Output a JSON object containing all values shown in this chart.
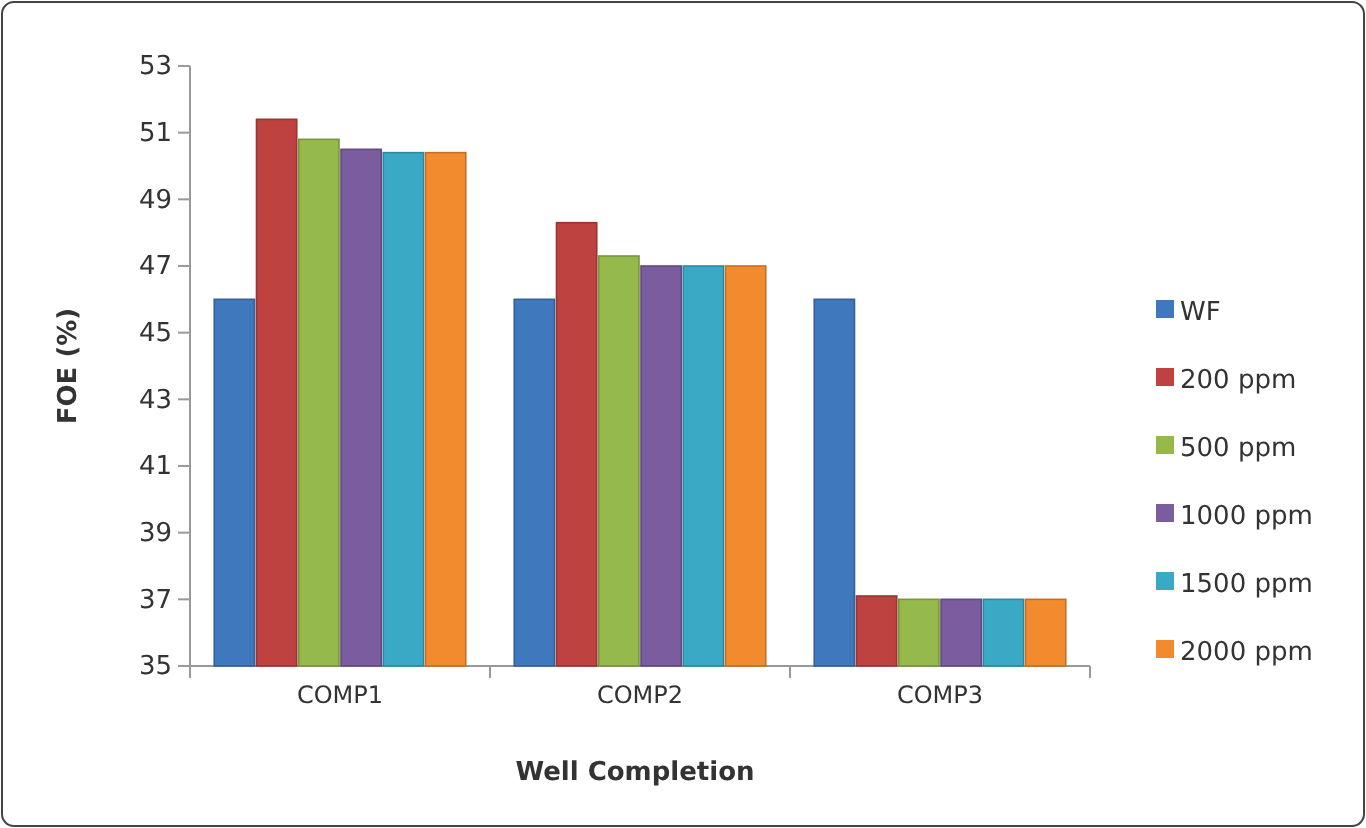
{
  "chart_data": {
    "type": "bar",
    "xlabel": "Well Completion",
    "ylabel": "FOE (%)",
    "categories": [
      "COMP1",
      "COMP2",
      "COMP3"
    ],
    "series": [
      {
        "name": "WF",
        "color": "#3f78bd",
        "values": [
          46.0,
          46.0,
          46.0
        ]
      },
      {
        "name": "200 ppm",
        "color": "#be4240",
        "values": [
          51.4,
          48.3,
          37.1
        ]
      },
      {
        "name": "500 ppm",
        "color": "#96b94b",
        "values": [
          50.8,
          47.3,
          37.0
        ]
      },
      {
        "name": "1000 ppm",
        "color": "#7b5c9f",
        "values": [
          50.5,
          47.0,
          37.0
        ]
      },
      {
        "name": "1500 ppm",
        "color": "#3aa9c5",
        "values": [
          50.4,
          47.0,
          37.0
        ]
      },
      {
        "name": "2000 ppm",
        "color": "#f28a2e",
        "values": [
          50.4,
          47.0,
          37.0
        ]
      }
    ],
    "ylim": [
      35,
      53
    ],
    "yticks": [
      35,
      37,
      39,
      41,
      43,
      45,
      47,
      49,
      51,
      53
    ],
    "grid": false,
    "legend": "right"
  }
}
